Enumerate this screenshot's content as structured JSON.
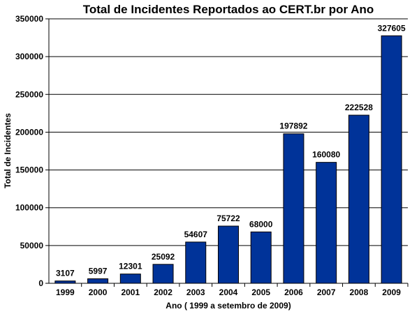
{
  "chart_data": {
    "type": "bar",
    "title": "Total de Incidentes Reportados ao CERT.br por Ano",
    "xlabel": "Ano ( 1999 a setembro de 2009)",
    "ylabel": "Total de Incidentes",
    "categories": [
      "1999",
      "2000",
      "2001",
      "2002",
      "2003",
      "2004",
      "2005",
      "2006",
      "2007",
      "2008",
      "2009"
    ],
    "values": [
      3107,
      5997,
      12301,
      25092,
      54607,
      75722,
      68000,
      197892,
      160080,
      222528,
      327605
    ],
    "data_labels": [
      "3107",
      "5997",
      "12301",
      "25092",
      "54607",
      "75722",
      "68000",
      "197892",
      "160080",
      "222528",
      "327605"
    ],
    "ylim": [
      0,
      350000
    ],
    "yticks": [
      0,
      50000,
      100000,
      150000,
      200000,
      250000,
      300000,
      350000
    ],
    "ytick_labels": [
      "0",
      "50000",
      "100000",
      "150000",
      "200000",
      "250000",
      "300000",
      "350000"
    ],
    "grid": true,
    "legend": "none",
    "bar_color": "#003399",
    "background": "#ffffff"
  }
}
